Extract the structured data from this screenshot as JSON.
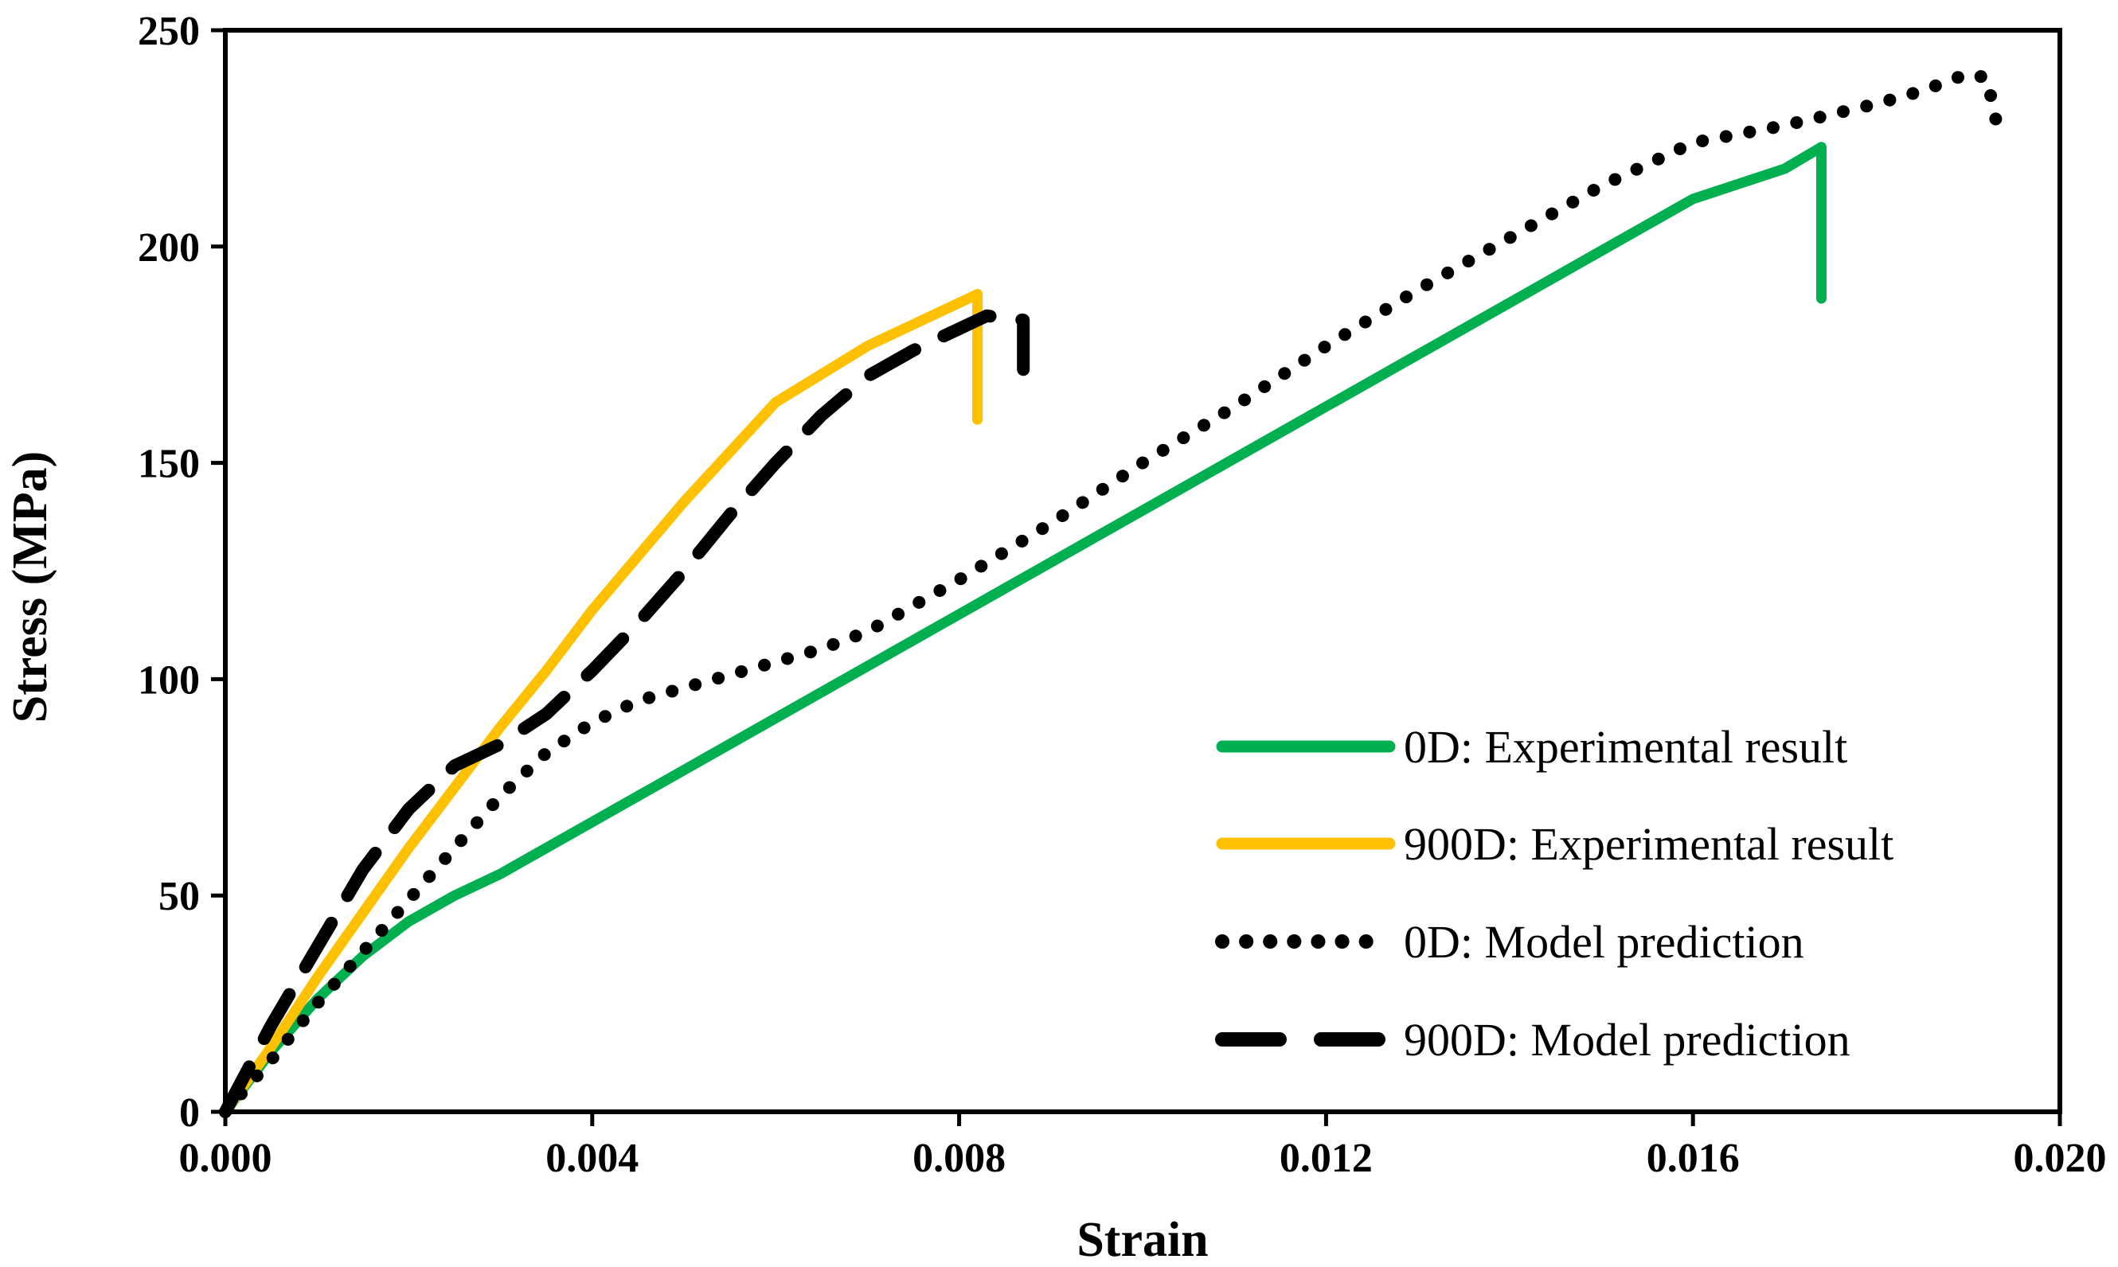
{
  "chart_data": {
    "type": "line",
    "title": "",
    "xlabel": "Strain",
    "ylabel": "Stress (MPa)",
    "xlim": [
      0.0,
      0.02
    ],
    "ylim": [
      0,
      250
    ],
    "xticks": [
      "0.000",
      "0.004",
      "0.008",
      "0.012",
      "0.016",
      "0.020"
    ],
    "yticks": [
      "0",
      "50",
      "100",
      "150",
      "200",
      "250"
    ],
    "grid": false,
    "legend_position": "bottom-right",
    "series": [
      {
        "name": "0D: Experimental result",
        "color": "#00b050",
        "style": "solid",
        "x": [
          0.0,
          0.0005,
          0.001,
          0.0015,
          0.002,
          0.0025,
          0.003,
          0.004,
          0.005,
          0.006,
          0.007,
          0.008,
          0.009,
          0.01,
          0.011,
          0.012,
          0.013,
          0.014,
          0.015,
          0.016,
          0.017,
          0.0174,
          0.0174,
          0.0174
        ],
        "y": [
          0,
          14,
          26,
          36,
          44,
          50,
          55,
          67,
          79,
          91,
          103,
          115,
          127,
          139,
          151,
          163,
          175,
          187,
          199,
          211,
          218,
          223,
          200,
          188
        ]
      },
      {
        "name": "900D: Experimental result",
        "color": "#ffc000",
        "style": "solid",
        "x": [
          0.0,
          0.0005,
          0.001,
          0.0015,
          0.002,
          0.0025,
          0.003,
          0.0035,
          0.004,
          0.005,
          0.006,
          0.007,
          0.0075,
          0.008,
          0.0082,
          0.0082,
          0.0082
        ],
        "y": [
          0,
          15,
          31,
          46,
          61,
          75,
          89,
          102,
          116,
          141,
          164,
          177,
          182,
          187,
          189,
          175,
          160
        ]
      },
      {
        "name": "0D: Model prediction",
        "color": "#000000",
        "style": "dotted",
        "x": [
          0.0,
          0.0005,
          0.001,
          0.0015,
          0.002,
          0.0025,
          0.003,
          0.0035,
          0.004,
          0.0045,
          0.005,
          0.0055,
          0.006,
          0.0065,
          0.007,
          0.008,
          0.009,
          0.01,
          0.011,
          0.012,
          0.013,
          0.014,
          0.015,
          0.016,
          0.017,
          0.018,
          0.0185,
          0.019,
          0.0192,
          0.0193,
          0.0193
        ],
        "y": [
          0,
          12,
          25,
          37,
          49,
          61,
          73,
          83,
          90,
          95,
          98,
          101,
          104,
          107,
          111,
          123,
          136,
          150,
          163,
          177,
          190,
          202,
          214,
          224,
          228,
          233,
          236,
          240,
          239,
          230,
          224
        ]
      },
      {
        "name": "900D: Model prediction",
        "color": "#000000",
        "style": "dashed",
        "x": [
          0.0,
          0.0005,
          0.001,
          0.0015,
          0.002,
          0.0025,
          0.003,
          0.0035,
          0.004,
          0.0045,
          0.005,
          0.0055,
          0.006,
          0.0065,
          0.007,
          0.0075,
          0.008,
          0.0083,
          0.0087,
          0.0087
        ],
        "y": [
          0,
          20,
          38,
          56,
          70,
          80,
          85,
          92,
          102,
          113,
          125,
          138,
          150,
          161,
          170,
          176,
          181,
          184,
          183,
          165
        ]
      }
    ]
  }
}
